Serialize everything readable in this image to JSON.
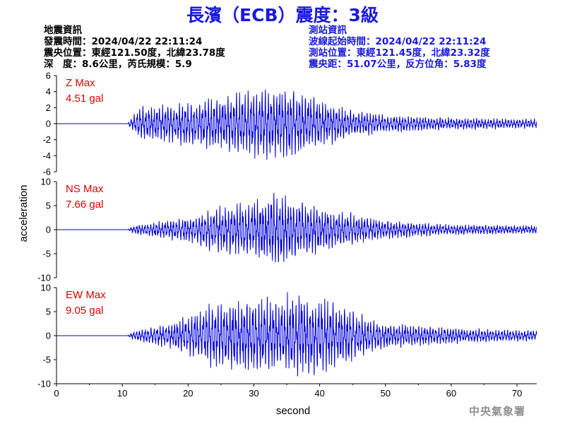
{
  "title": "長濱（ECB）震度：3級",
  "earthquake_info": {
    "heading": "地震資訊",
    "time": "發震時間：2024/04/22 22:11:24",
    "epicenter": "震央位置：東經121.50度，北緯23.78度",
    "depth_mag": "深　度：8.6公里，芮氏規模：5.9"
  },
  "station_info": {
    "heading": "測站資訊",
    "wave_start": "波線起始時間：2024/04/22 22:11:24",
    "location": "測站位置：東經121.45度，北緯23.32度",
    "distance": "震央距：51.07公里，反方位角：5.83度"
  },
  "footer": "中央氣象署",
  "chart_data": {
    "type": "line",
    "xlabel": "second",
    "ylabel": "acceleration",
    "xlim": [
      0,
      73
    ],
    "xticks": [
      0,
      10,
      20,
      30,
      40,
      50,
      60,
      70
    ],
    "line_color": "#0000dd",
    "label_color": "#dd0000",
    "panels": [
      {
        "component": "Z",
        "max_label": "Z Max",
        "max_value": "4.51 gal",
        "peak": 4.51,
        "ylim": [
          -6,
          6
        ],
        "yticks": [
          -6,
          -4,
          -2,
          0,
          2,
          4,
          6
        ],
        "signal_onset_s": 10.8,
        "envelope_s": [
          [
            0,
            0
          ],
          [
            10.8,
            0
          ],
          [
            11.5,
            0.8
          ],
          [
            13,
            1.6
          ],
          [
            18,
            2.0
          ],
          [
            25,
            2.6
          ],
          [
            30,
            3.4
          ],
          [
            34,
            3.6
          ],
          [
            36,
            3.2
          ],
          [
            40,
            2.4
          ],
          [
            44,
            1.5
          ],
          [
            50,
            0.9
          ],
          [
            60,
            0.6
          ],
          [
            73,
            0.45
          ]
        ]
      },
      {
        "component": "NS",
        "max_label": "NS Max",
        "max_value": "7.66 gal",
        "peak": 7.66,
        "ylim": [
          -10,
          10
        ],
        "yticks": [
          -10,
          -5,
          0,
          5,
          10
        ],
        "signal_onset_s": 10.8,
        "envelope_s": [
          [
            0,
            0
          ],
          [
            10.8,
            0
          ],
          [
            11.5,
            0.6
          ],
          [
            13,
            1.0
          ],
          [
            20,
            2.2
          ],
          [
            25,
            4.0
          ],
          [
            30,
            5.0
          ],
          [
            33,
            6.2
          ],
          [
            38,
            4.5
          ],
          [
            42,
            3.5
          ],
          [
            50,
            1.6
          ],
          [
            60,
            0.9
          ],
          [
            73,
            0.7
          ]
        ]
      },
      {
        "component": "EW",
        "max_label": "EW Max",
        "max_value": "9.05 gal",
        "peak": 9.05,
        "ylim": [
          -10,
          10
        ],
        "yticks": [
          -10,
          -5,
          0,
          5,
          10
        ],
        "signal_onset_s": 10.8,
        "envelope_s": [
          [
            0,
            0
          ],
          [
            10.8,
            0
          ],
          [
            11.5,
            0.6
          ],
          [
            13,
            1.0
          ],
          [
            18,
            2.2
          ],
          [
            23,
            4.5
          ],
          [
            30,
            6.0
          ],
          [
            33,
            5.5
          ],
          [
            37,
            6.5
          ],
          [
            42,
            5.0
          ],
          [
            50,
            2.0
          ],
          [
            60,
            1.2
          ],
          [
            73,
            0.8
          ]
        ]
      }
    ]
  }
}
